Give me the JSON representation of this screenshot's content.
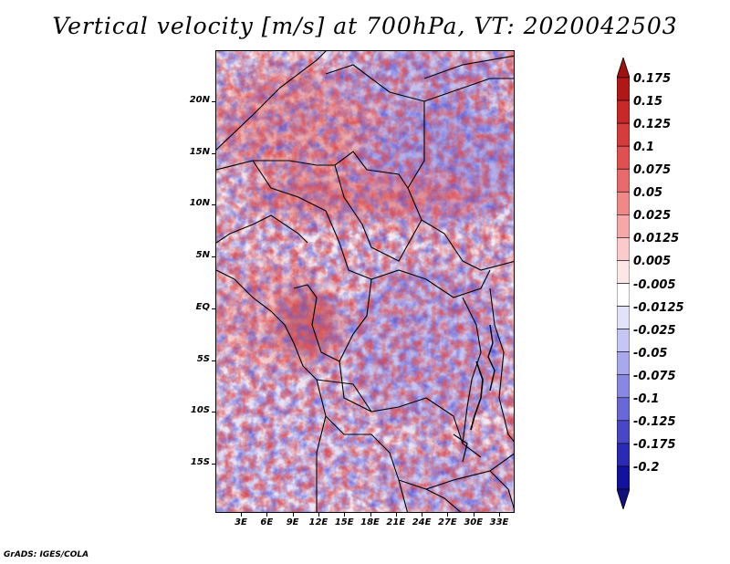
{
  "title": "Vertical velocity [m/s] at 700hPa, VT: 2020042503",
  "footer": "GrADS: IGES/COLA",
  "lat_labels": [
    "20N",
    "15N",
    "10N",
    "5N",
    "EQ",
    "5S",
    "10S",
    "15S"
  ],
  "lon_labels": [
    "3E",
    "6E",
    "9E",
    "12E",
    "15E",
    "18E",
    "21E",
    "24E",
    "27E",
    "30E",
    "33E"
  ],
  "colorbar": {
    "labels": [
      "0.175",
      "0.15",
      "0.125",
      "0.1",
      "0.075",
      "0.05",
      "0.025",
      "0.0125",
      "0.005",
      "-0.005",
      "-0.0125",
      "-0.025",
      "-0.05",
      "-0.075",
      "-0.1",
      "-0.125",
      "-0.175",
      "-0.2"
    ],
    "colors": [
      "#b01818",
      "#c82828",
      "#d63c3c",
      "#e05050",
      "#e86a6a",
      "#f08888",
      "#f6a8a8",
      "#fbcaca",
      "#fde6e6",
      "#ffffff",
      "#e2e2fb",
      "#c6c6f5",
      "#a8a8ee",
      "#8888e2",
      "#6868d6",
      "#4848c6",
      "#2a2ab4",
      "#12129c"
    ],
    "top_arrow_color": "#a01010",
    "bottom_arrow_color": "#101080"
  }
}
